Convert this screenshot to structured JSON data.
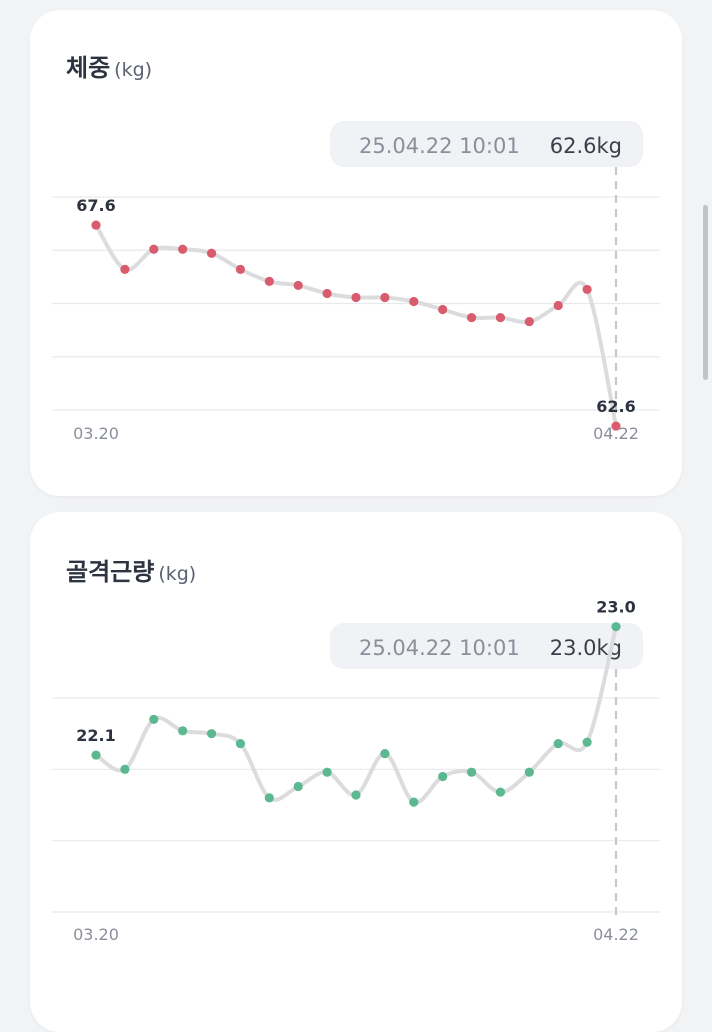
{
  "chart_data": [
    {
      "type": "line",
      "title": "체중",
      "unit": "(kg)",
      "x_start_label": "03.20",
      "x_end_label": "04.22",
      "values": [
        67.6,
        66.5,
        67.0,
        67.0,
        66.9,
        66.5,
        66.2,
        66.1,
        65.9,
        65.8,
        65.8,
        65.7,
        65.5,
        65.3,
        65.3,
        65.2,
        65.6,
        66.0,
        62.6
      ],
      "first_label": "67.6",
      "last_label": "62.6",
      "tooltip": {
        "date": "25.04.22 10:01",
        "value": "62.6kg"
      },
      "ylim": [
        63.0,
        68.3
      ],
      "grid_count": 5,
      "color": "#d85c6d"
    },
    {
      "type": "line",
      "title": "골격근량",
      "unit": "(kg)",
      "x_start_label": "03.20",
      "x_end_label": "04.22",
      "values": [
        22.1,
        22.0,
        22.35,
        22.27,
        22.25,
        22.18,
        21.8,
        21.88,
        21.98,
        21.82,
        22.11,
        21.77,
        21.95,
        21.98,
        21.84,
        21.98,
        22.18,
        22.19,
        23.0
      ],
      "first_label": "22.1",
      "last_label": "23.0",
      "tooltip": {
        "date": "25.04.22 10:01",
        "value": "23.0kg"
      },
      "ylim": [
        21.0,
        22.5
      ],
      "grid_count": 4,
      "color": "#5cb890"
    }
  ]
}
